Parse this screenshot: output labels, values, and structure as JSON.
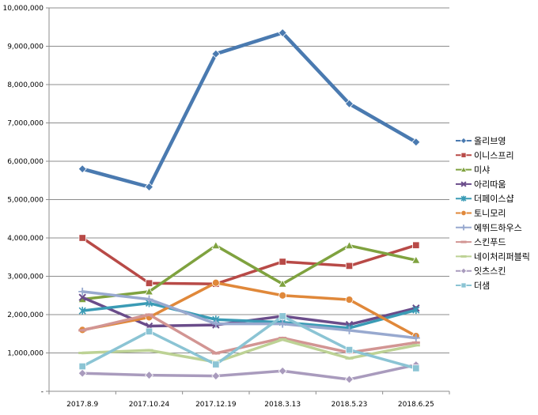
{
  "chart_data": {
    "type": "line",
    "title": "",
    "xlabel": "",
    "ylabel": "",
    "categories": [
      "2017.8.9",
      "2017.10.24",
      "2017.12.19",
      "2018.3.13",
      "2018.5.23",
      "2018.6.25"
    ],
    "ylim": [
      0,
      10000000
    ],
    "y_ticks": [
      {
        "value": 0,
        "label": "-"
      },
      {
        "value": 1000000,
        "label": "1,000,000"
      },
      {
        "value": 2000000,
        "label": "2,000,000"
      },
      {
        "value": 3000000,
        "label": "3,000,000"
      },
      {
        "value": 4000000,
        "label": "4,000,000"
      },
      {
        "value": 5000000,
        "label": "5,000,000"
      },
      {
        "value": 6000000,
        "label": "6,000,000"
      },
      {
        "value": 7000000,
        "label": "7,000,000"
      },
      {
        "value": 8000000,
        "label": "8,000,000"
      },
      {
        "value": 9000000,
        "label": "9,000,000"
      },
      {
        "value": 10000000,
        "label": "10,000,000"
      }
    ],
    "grid": true,
    "legend_position": "right",
    "series": [
      {
        "name": "올리브영",
        "color": "#4a7ab0",
        "marker": "diamond",
        "values": [
          5800000,
          5330000,
          8800000,
          9350000,
          7500000,
          6500000
        ]
      },
      {
        "name": "이니스프리",
        "color": "#b84a47",
        "marker": "square",
        "values": [
          4000000,
          2820000,
          2800000,
          3380000,
          3270000,
          3810000
        ]
      },
      {
        "name": "미샤",
        "color": "#7fa23f",
        "marker": "triangle",
        "values": [
          2400000,
          2600000,
          3800000,
          2800000,
          3800000,
          3420000
        ]
      },
      {
        "name": "아리따움",
        "color": "#6a4c8a",
        "marker": "x",
        "values": [
          2450000,
          1700000,
          1730000,
          1960000,
          1740000,
          2170000
        ]
      },
      {
        "name": "더페이스샵",
        "color": "#3a9bb5",
        "marker": "star",
        "values": [
          2100000,
          2300000,
          1870000,
          1800000,
          1650000,
          2120000
        ]
      },
      {
        "name": "토니모리",
        "color": "#e0883a",
        "marker": "circle",
        "values": [
          1600000,
          1930000,
          2830000,
          2500000,
          2390000,
          1440000
        ]
      },
      {
        "name": "에뛰드하우스",
        "color": "#98a9cf",
        "marker": "plus",
        "values": [
          2600000,
          2400000,
          1760000,
          1760000,
          1590000,
          1390000
        ]
      },
      {
        "name": "스킨푸드",
        "color": "#d29593",
        "marker": "dash",
        "values": [
          1590000,
          2000000,
          990000,
          1390000,
          1010000,
          1270000
        ]
      },
      {
        "name": "네이처리퍼블릭",
        "color": "#bdd295",
        "marker": "dash",
        "values": [
          1000000,
          1070000,
          760000,
          1350000,
          860000,
          1200000
        ]
      },
      {
        "name": "잇츠스킨",
        "color": "#a99bbd",
        "marker": "diamond",
        "values": [
          470000,
          420000,
          400000,
          530000,
          310000,
          690000
        ]
      },
      {
        "name": "더샘",
        "color": "#8bc4d4",
        "marker": "square",
        "values": [
          650000,
          1560000,
          700000,
          1960000,
          1080000,
          600000
        ]
      }
    ]
  }
}
